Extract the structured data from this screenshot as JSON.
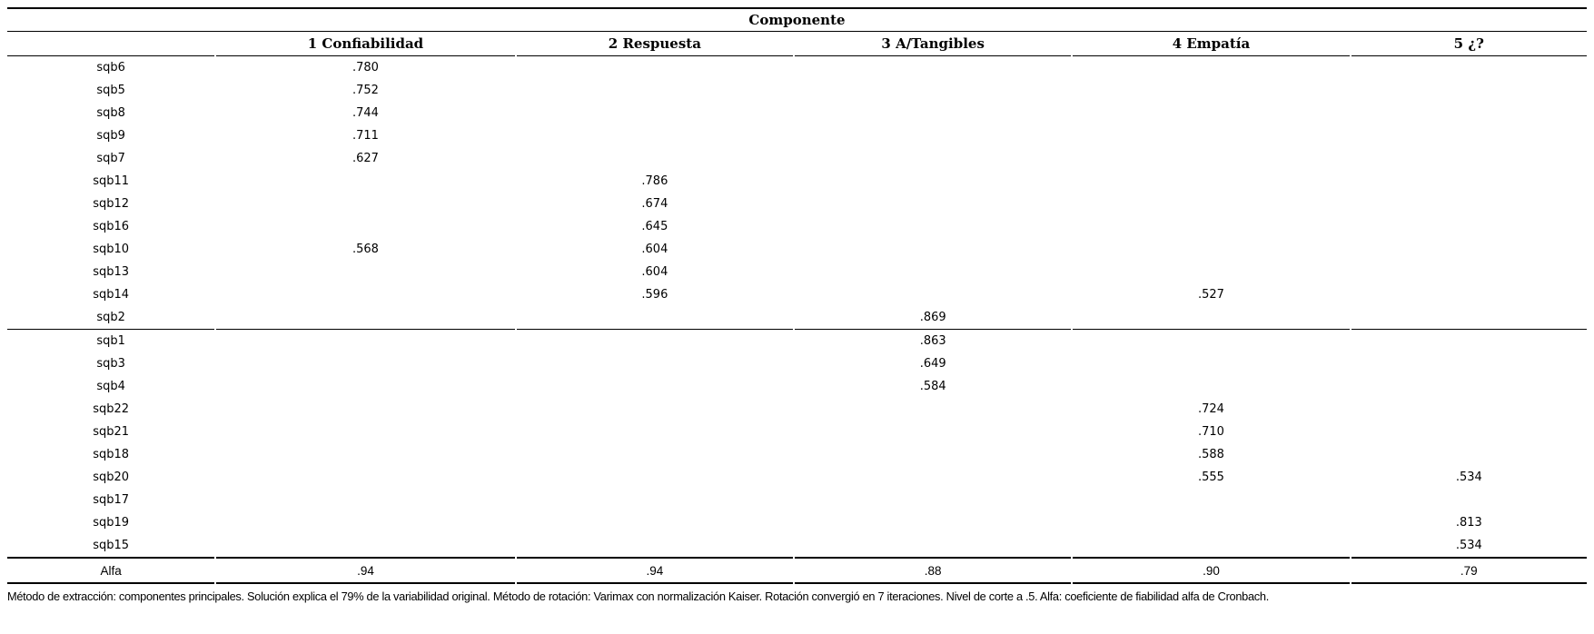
{
  "table": {
    "title": "Componente",
    "columns": [
      "",
      "1 Confiabilidad",
      "2 Respuesta",
      "3 A/Tangibles",
      "4 Empatía",
      "5 ¿?"
    ],
    "rows": [
      {
        "label": "sqb6",
        "values": [
          ".780",
          "",
          "",
          "",
          ""
        ]
      },
      {
        "label": "sqb5",
        "values": [
          ".752",
          "",
          "",
          "",
          ""
        ]
      },
      {
        "label": "sqb8",
        "values": [
          ".744",
          "",
          "",
          "",
          ""
        ]
      },
      {
        "label": "sqb9",
        "values": [
          ".711",
          "",
          "",
          "",
          ""
        ]
      },
      {
        "label": "sqb7",
        "values": [
          ".627",
          "",
          "",
          "",
          ""
        ]
      },
      {
        "label": "sqb11",
        "values": [
          "",
          ".786",
          "",
          "",
          ""
        ]
      },
      {
        "label": "sqb12",
        "values": [
          "",
          ".674",
          "",
          "",
          ""
        ]
      },
      {
        "label": "sqb16",
        "values": [
          "",
          ".645",
          "",
          "",
          ""
        ]
      },
      {
        "label": "sqb10",
        "values": [
          ".568",
          ".604",
          "",
          "",
          ""
        ]
      },
      {
        "label": "sqb13",
        "values": [
          "",
          ".604",
          "",
          "",
          ""
        ]
      },
      {
        "label": "sqb14",
        "values": [
          "",
          ".596",
          "",
          ".527",
          ""
        ]
      },
      {
        "label": "sqb2",
        "values": [
          "",
          "",
          ".869",
          "",
          ""
        ],
        "separator_after": true
      },
      {
        "label": "sqb1",
        "values": [
          "",
          "",
          ".863",
          "",
          ""
        ]
      },
      {
        "label": "sqb3",
        "values": [
          "",
          "",
          ".649",
          "",
          ""
        ]
      },
      {
        "label": "sqb4",
        "values": [
          "",
          "",
          ".584",
          "",
          ""
        ]
      },
      {
        "label": "sqb22",
        "values": [
          "",
          "",
          "",
          ".724",
          ""
        ]
      },
      {
        "label": "sqb21",
        "values": [
          "",
          "",
          "",
          ".710",
          ""
        ]
      },
      {
        "label": "sqb18",
        "values": [
          "",
          "",
          "",
          ".588",
          ""
        ]
      },
      {
        "label": "sqb20",
        "values": [
          "",
          "",
          "",
          ".555",
          ".534"
        ]
      },
      {
        "label": "sqb17",
        "values": [
          "",
          "",
          "",
          "",
          ""
        ]
      },
      {
        "label": "sqb19",
        "values": [
          "",
          "",
          "",
          "",
          ".813"
        ]
      },
      {
        "label": "sqb15",
        "values": [
          "",
          "",
          "",
          "",
          ".534"
        ]
      }
    ],
    "summary_row": {
      "label": "Alfa",
      "values": [
        ".94",
        ".94",
        ".88",
        ".90",
        ".79"
      ]
    },
    "footnote": "Método de extracción: componentes principales. Solución explica el 79% de la variabilidad original. Método de rotación: Varimax con normalización Kaiser. Rotación convergió en 7 iteraciones. Nivel de corte a .5. Alfa: coeficiente de fiabilidad alfa de Cronbach."
  }
}
